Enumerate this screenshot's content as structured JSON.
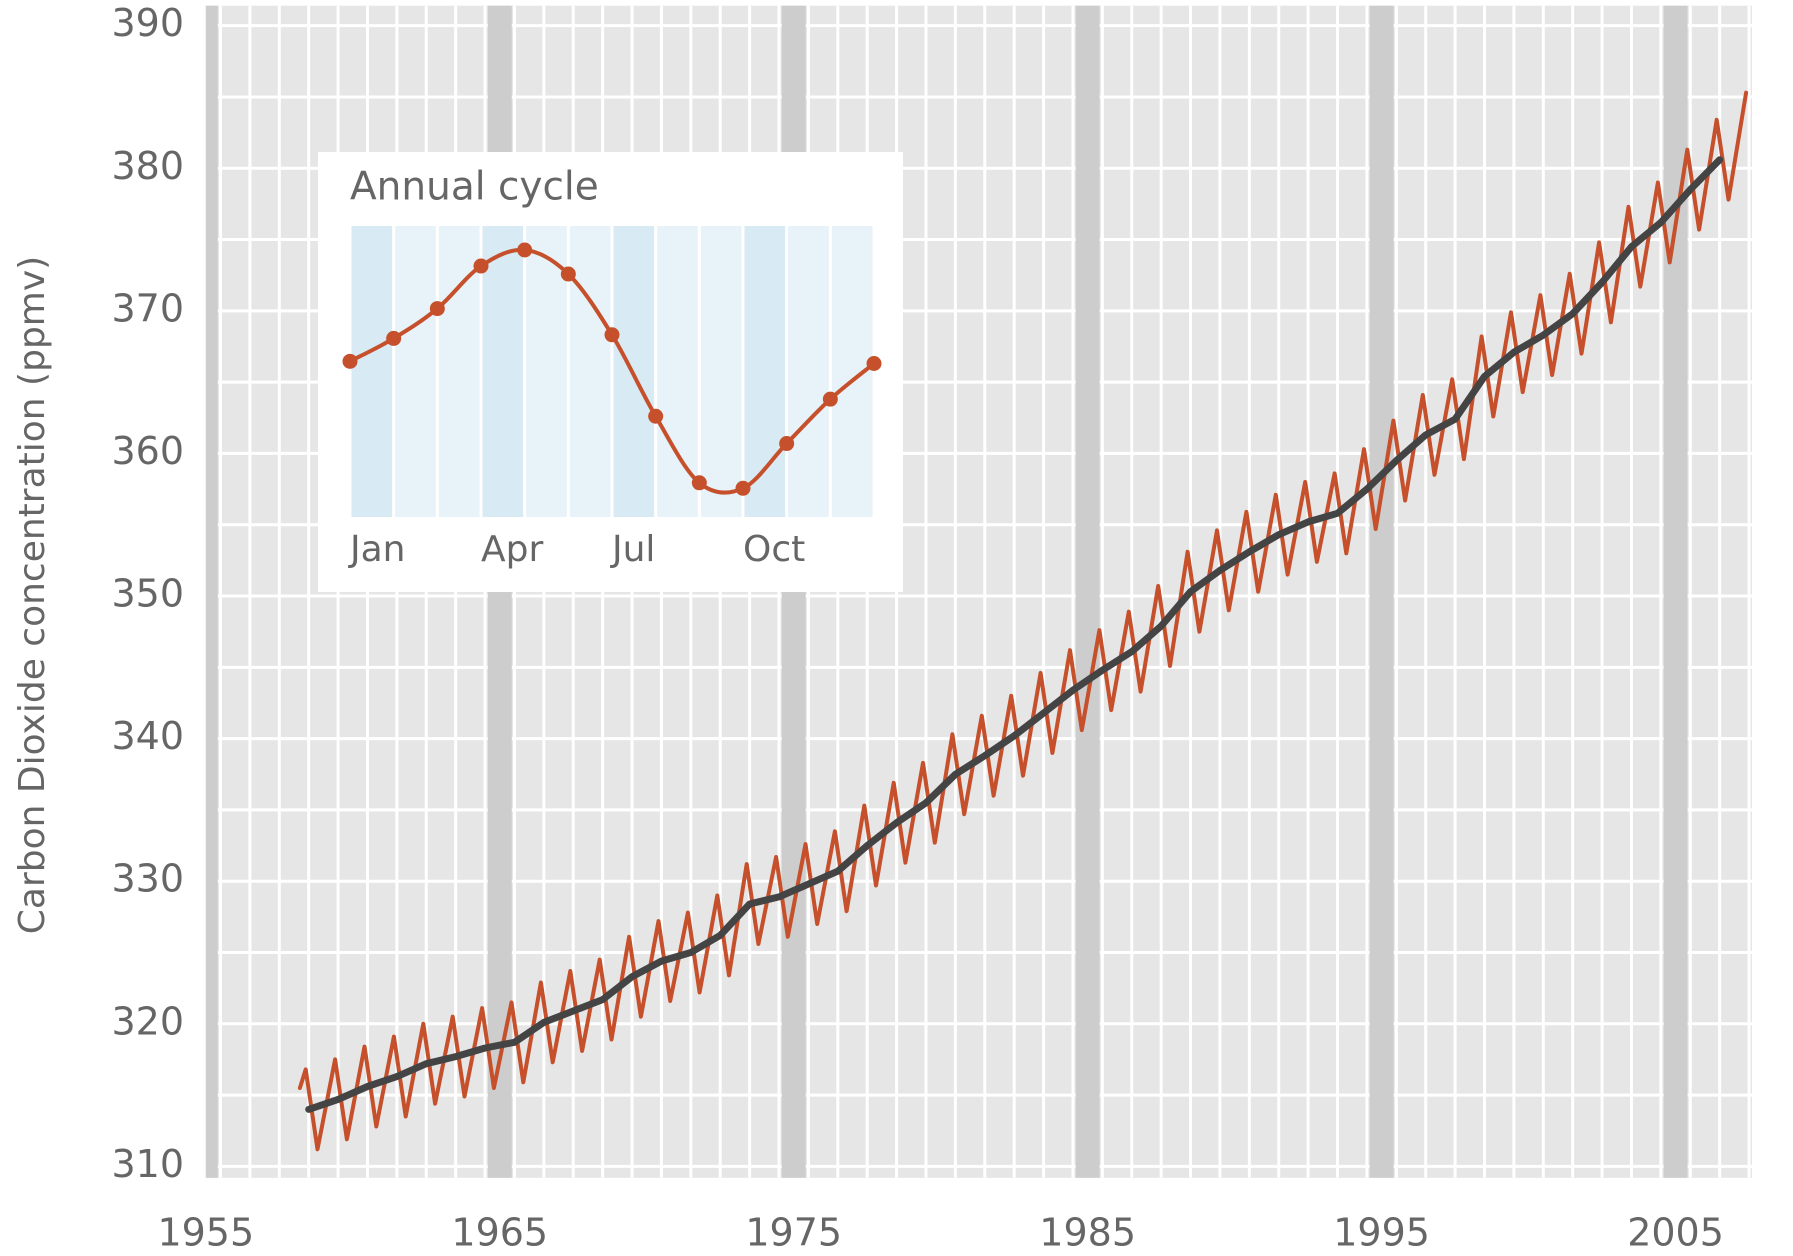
{
  "chart_data": [
    {
      "type": "line",
      "ylabel": "Carbon Dioxide concentration (ppmv)",
      "xlim": [
        1955,
        2007.6
      ],
      "ylim": [
        309.2,
        391.4
      ],
      "xticks": [
        1955,
        1965,
        1975,
        1985,
        1995,
        2005
      ],
      "yticks": [
        310,
        320,
        330,
        340,
        350,
        360,
        370,
        380,
        390
      ],
      "grid": true,
      "series": [
        {
          "color": "#c5502b",
          "x": [
            1958.2,
            1958.4,
            1958.8,
            1959.4,
            1959.8,
            1960.4,
            1960.8,
            1961.4,
            1961.8,
            1962.4,
            1962.8,
            1963.4,
            1963.8,
            1964.4,
            1964.8,
            1965.4,
            1965.8,
            1966.4,
            1966.8,
            1967.4,
            1967.8,
            1968.4,
            1968.8,
            1969.4,
            1969.8,
            1970.4,
            1970.8,
            1971.4,
            1971.8,
            1972.4,
            1972.8,
            1973.4,
            1973.8,
            1974.4,
            1974.8,
            1975.4,
            1975.8,
            1976.4,
            1976.8,
            1977.4,
            1977.8,
            1978.4,
            1978.8,
            1979.4,
            1979.8,
            1980.4,
            1980.8,
            1981.4,
            1981.8,
            1982.4,
            1982.8,
            1983.4,
            1983.8,
            1984.4,
            1984.8,
            1985.4,
            1985.8,
            1986.4,
            1986.8,
            1987.4,
            1987.8,
            1988.4,
            1988.8,
            1989.4,
            1989.8,
            1990.4,
            1990.8,
            1991.4,
            1991.8,
            1992.4,
            1992.8,
            1993.4,
            1993.8,
            1994.4,
            1994.8,
            1995.4,
            1995.8,
            1996.4,
            1996.8,
            1997.4,
            1997.8,
            1998.4,
            1998.8,
            1999.4,
            1999.8,
            2000.4,
            2000.8,
            2001.4,
            2001.8,
            2002.4,
            2002.8,
            2003.4,
            2003.8,
            2004.4,
            2004.8,
            2005.4,
            2005.8,
            2006.4,
            2006.8,
            2007.4
          ],
          "values": [
            315.5,
            316.8,
            311.2,
            317.5,
            311.9,
            318.4,
            312.8,
            319.1,
            313.5,
            320.0,
            314.4,
            320.5,
            314.9,
            321.1,
            315.5,
            321.5,
            315.9,
            322.9,
            317.3,
            323.7,
            318.1,
            324.5,
            318.9,
            326.1,
            320.5,
            327.2,
            321.6,
            327.8,
            322.2,
            329.0,
            323.4,
            331.2,
            325.6,
            331.7,
            326.1,
            332.6,
            327.0,
            333.5,
            327.9,
            335.3,
            329.7,
            336.9,
            331.3,
            338.3,
            332.7,
            340.3,
            334.7,
            341.6,
            336.0,
            343.0,
            337.4,
            344.6,
            339.0,
            346.2,
            340.6,
            347.6,
            342.0,
            348.9,
            343.3,
            350.7,
            345.1,
            353.1,
            347.5,
            354.6,
            349.0,
            355.9,
            350.3,
            357.1,
            351.5,
            358.0,
            352.4,
            358.6,
            353.0,
            360.3,
            354.7,
            362.3,
            356.7,
            364.1,
            358.5,
            365.2,
            359.6,
            368.2,
            362.6,
            369.9,
            364.3,
            371.1,
            365.5,
            372.6,
            367.0,
            374.8,
            369.2,
            377.3,
            371.7,
            379.0,
            373.4,
            381.3,
            375.7,
            383.4,
            377.8,
            385.3
          ]
        },
        {
          "color": "#444444",
          "x": [
            1958.5,
            1959.5,
            1960.5,
            1961.5,
            1962.5,
            1963.5,
            1964.5,
            1965.5,
            1966.5,
            1967.5,
            1968.5,
            1969.5,
            1970.5,
            1971.5,
            1972.5,
            1973.5,
            1974.5,
            1975.5,
            1976.5,
            1977.5,
            1978.5,
            1979.5,
            1980.5,
            1981.5,
            1982.5,
            1983.5,
            1984.5,
            1985.5,
            1986.5,
            1987.5,
            1988.5,
            1989.5,
            1990.5,
            1991.5,
            1992.5,
            1993.5,
            1994.5,
            1995.5,
            1996.5,
            1997.5,
            1998.5,
            1999.5,
            2000.5,
            2001.5,
            2002.5,
            2003.5,
            2004.5,
            2005.5,
            2006.5
          ],
          "values": [
            314.0,
            314.7,
            315.6,
            316.3,
            317.2,
            317.7,
            318.3,
            318.7,
            320.1,
            320.9,
            321.7,
            323.3,
            324.4,
            325.0,
            326.2,
            328.4,
            328.9,
            329.8,
            330.7,
            332.5,
            334.1,
            335.5,
            337.5,
            338.8,
            340.2,
            341.8,
            343.4,
            344.8,
            346.1,
            347.9,
            350.3,
            351.8,
            353.1,
            354.3,
            355.2,
            355.8,
            357.5,
            359.5,
            361.3,
            362.4,
            365.4,
            367.1,
            368.3,
            369.8,
            372.0,
            374.5,
            376.2,
            378.5,
            380.6
          ]
        }
      ]
    },
    {
      "type": "line",
      "title": "Annual cycle",
      "categories": [
        "Jan",
        null,
        null,
        "Apr",
        null,
        null,
        "Jul",
        null,
        null,
        "Oct",
        null,
        null,
        null
      ],
      "values": [
        0.28,
        0.91,
        1.73,
        2.9,
        3.34,
        2.68,
        1.01,
        -1.23,
        -3.06,
        -3.21,
        -1.98,
        -0.76,
        0.22
      ],
      "ylim": [
        -4,
        4
      ],
      "color": "#c5502b"
    }
  ]
}
